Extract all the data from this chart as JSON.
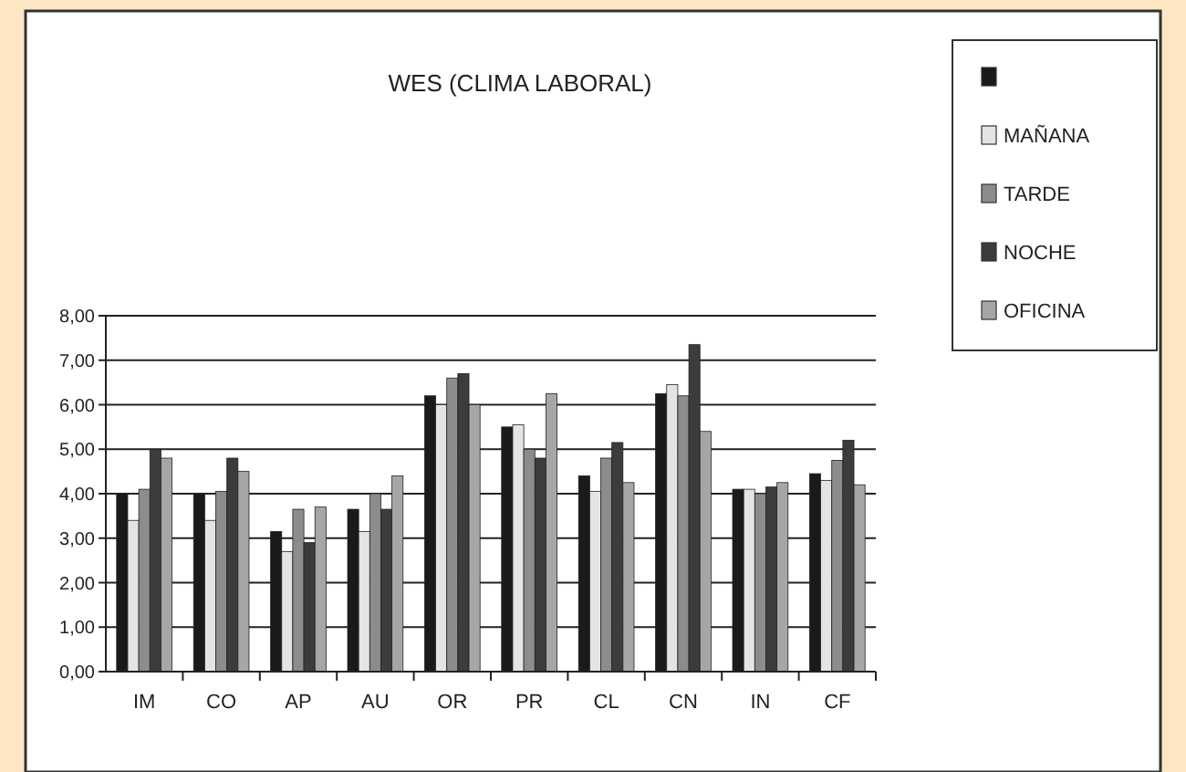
{
  "chart_data": {
    "type": "bar",
    "title": "WES (CLIMA LABORAL)",
    "categories": [
      "IM",
      "CO",
      "AP",
      "AU",
      "OR",
      "PR",
      "CL",
      "CN",
      "IN",
      "CF"
    ],
    "series": [
      {
        "color": "#1a1a1a",
        "values": [
          4.0,
          4.0,
          3.15,
          3.65,
          6.2,
          5.5,
          4.4,
          6.25,
          4.1,
          4.45
        ]
      },
      {
        "name": "MAÑANA",
        "color": "#e4e4e4",
        "values": [
          3.4,
          3.4,
          2.7,
          3.15,
          6.0,
          5.55,
          4.05,
          6.45,
          4.1,
          4.3
        ]
      },
      {
        "name": "TARDE",
        "color": "#8c8c8c",
        "values": [
          4.1,
          4.05,
          3.65,
          4.0,
          6.6,
          5.0,
          4.8,
          6.2,
          4.0,
          4.75
        ]
      },
      {
        "name": "NOCHE",
        "color": "#3c3c3c",
        "values": [
          5.0,
          4.8,
          2.9,
          3.65,
          6.7,
          4.8,
          5.15,
          7.35,
          4.15,
          5.2
        ]
      },
      {
        "name": "OFICINA",
        "color": "#a6a6a6",
        "values": [
          4.8,
          4.5,
          3.7,
          4.4,
          6.0,
          6.25,
          4.25,
          5.4,
          4.25,
          4.2
        ]
      }
    ],
    "ylim": [
      0,
      8
    ],
    "yticks": [
      {
        "value": 0,
        "label": "0,00"
      },
      {
        "value": 1,
        "label": "1,00"
      },
      {
        "value": 2,
        "label": "2,00"
      },
      {
        "value": 3,
        "label": "3,00"
      },
      {
        "value": 4,
        "label": "4,00"
      },
      {
        "value": 5,
        "label": "5,00"
      },
      {
        "value": 6,
        "label": "6,00"
      },
      {
        "value": 7,
        "label": "7,00"
      },
      {
        "value": 8,
        "label": "8,00"
      }
    ],
    "grid": "y",
    "legend": "top right"
  }
}
